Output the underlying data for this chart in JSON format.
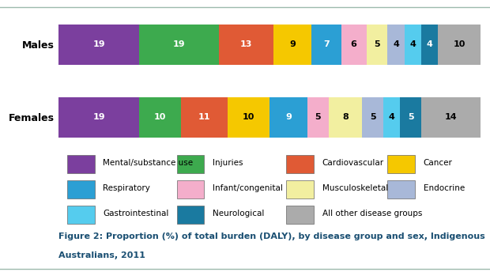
{
  "categories": [
    "Males",
    "Females"
  ],
  "segments": [
    {
      "label": "Mental/substance use",
      "color": "#7B3F9E",
      "values": [
        19,
        19
      ],
      "text_color": "white"
    },
    {
      "label": "Injuries",
      "color": "#3DAA4E",
      "values": [
        19,
        10
      ],
      "text_color": "white"
    },
    {
      "label": "Cardiovascular",
      "color": "#E05A35",
      "values": [
        13,
        11
      ],
      "text_color": "white"
    },
    {
      "label": "Cancer",
      "color": "#F5C800",
      "values": [
        9,
        10
      ],
      "text_color": "black"
    },
    {
      "label": "Respiratory",
      "color": "#2B9FD4",
      "values": [
        7,
        9
      ],
      "text_color": "white"
    },
    {
      "label": "Infant/congenital",
      "color": "#F4AECB",
      "values": [
        6,
        5
      ],
      "text_color": "black"
    },
    {
      "label": "Musculoskeletal",
      "color": "#F2EFA0",
      "values": [
        5,
        8
      ],
      "text_color": "black"
    },
    {
      "label": "Endocrine",
      "color": "#A8B8D8",
      "values": [
        4,
        5
      ],
      "text_color": "black"
    },
    {
      "label": "Gastrointestinal",
      "color": "#55CCEE",
      "values": [
        4,
        4
      ],
      "text_color": "black"
    },
    {
      "label": "Neurological",
      "color": "#1A7AA0",
      "values": [
        4,
        5
      ],
      "text_color": "white"
    },
    {
      "label": "All other disease groups",
      "color": "#ABABAB",
      "values": [
        10,
        14
      ],
      "text_color": "black"
    }
  ],
  "legend_order": [
    [
      "Mental/substance use",
      "Injuries",
      "Cardiovascular",
      "Cancer"
    ],
    [
      "Respiratory",
      "Infant/congenital",
      "Musculoskeletal",
      "Endocrine"
    ],
    [
      "Gastrointestinal",
      "Neurological",
      "All other disease groups"
    ]
  ],
  "figure_caption_line1": "Figure 2: Proportion (%) of total burden (DALY), by disease group and sex, Indigenous",
  "figure_caption_line2": "Australians, 2011",
  "background_color": "#FFFFFF",
  "border_color": "#9DBAAD",
  "caption_color": "#1A4F72"
}
